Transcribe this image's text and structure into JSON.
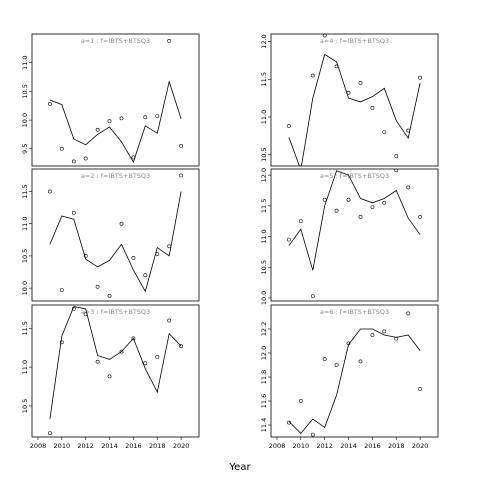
{
  "chart_data": {
    "type": "line",
    "xlabel": "Year",
    "x_ticks": [
      2008,
      2010,
      2012,
      2014,
      2016,
      2018,
      2020
    ],
    "xlim": [
      2007.5,
      2021.5
    ],
    "panels": [
      {
        "title": "a=1 : f=IBTS+BTSQ3",
        "ylim": [
          9.2,
          11.5
        ],
        "y_ticks": [
          9.5,
          10.0,
          10.5,
          11.0
        ],
        "y_tick_labels": [
          "9.5",
          "10.0",
          "10.5",
          "11.0"
        ],
        "x": [
          2009,
          2010,
          2011,
          2012,
          2013,
          2014,
          2015,
          2016,
          2017,
          2018,
          2019,
          2020
        ],
        "fit": [
          10.35,
          10.27,
          9.67,
          9.57,
          9.75,
          9.88,
          9.62,
          9.27,
          9.9,
          9.77,
          10.67,
          10.02
        ],
        "obs": [
          10.28,
          9.5,
          9.28,
          9.33,
          9.83,
          9.98,
          10.03,
          9.35,
          10.05,
          10.07,
          11.38,
          9.55
        ]
      },
      {
        "title": "a=2 : f=IBTS+BTSQ3",
        "ylim": [
          9.8,
          11.85
        ],
        "y_ticks": [
          10.0,
          10.5,
          11.0,
          11.5
        ],
        "y_tick_labels": [
          "10.0",
          "10.5",
          "11.0",
          "11.5"
        ],
        "x": [
          2009,
          2010,
          2011,
          2012,
          2013,
          2014,
          2015,
          2016,
          2017,
          2018,
          2019,
          2020
        ],
        "fit": [
          10.68,
          11.12,
          11.07,
          10.45,
          10.33,
          10.43,
          10.68,
          10.28,
          9.95,
          10.63,
          10.5,
          11.5
        ],
        "obs": [
          11.5,
          9.97,
          11.17,
          10.5,
          10.02,
          9.88,
          11.0,
          10.47,
          10.2,
          10.53,
          10.65,
          11.75
        ]
      },
      {
        "title": "a=3 : f=IBTS+BTSQ3",
        "ylim": [
          10.1,
          11.8
        ],
        "y_ticks": [
          10.5,
          11.0,
          11.5
        ],
        "y_tick_labels": [
          "10.5",
          "11.0",
          "11.5"
        ],
        "x": [
          2009,
          2010,
          2011,
          2012,
          2013,
          2014,
          2015,
          2016,
          2017,
          2018,
          2019,
          2020
        ],
        "fit": [
          10.33,
          11.4,
          11.78,
          11.75,
          11.15,
          11.1,
          11.2,
          11.37,
          10.98,
          10.68,
          11.43,
          11.27
        ],
        "obs": [
          10.15,
          11.32,
          11.75,
          11.68,
          11.07,
          10.88,
          11.2,
          11.37,
          11.05,
          11.13,
          11.6,
          11.27
        ]
      },
      {
        "title": "a=4 : f=IBTS+BTSQ3",
        "ylim": [
          10.35,
          12.1
        ],
        "y_ticks": [
          10.5,
          11.0,
          11.5,
          12.0
        ],
        "y_tick_labels": [
          "10.5",
          "11.0",
          "11.5",
          "12.0"
        ],
        "x": [
          2009,
          2010,
          2011,
          2012,
          2013,
          2014,
          2015,
          2016,
          2017,
          2018,
          2019,
          2020
        ],
        "fit": [
          10.73,
          10.3,
          11.25,
          11.83,
          11.73,
          11.25,
          11.2,
          11.27,
          11.38,
          10.95,
          10.72,
          11.45
        ],
        "obs": [
          10.88,
          10.33,
          11.55,
          12.08,
          11.67,
          11.32,
          11.45,
          11.12,
          10.8,
          10.48,
          10.82,
          11.52
        ]
      },
      {
        "title": "a=5 : f=IBTS+BTSQ3",
        "ylim": [
          9.95,
          12.1
        ],
        "y_ticks": [
          10.0,
          10.5,
          11.0,
          11.5,
          12.0
        ],
        "y_tick_labels": [
          "10.0",
          "10.5",
          "11.0",
          "11.5",
          "12.0"
        ],
        "x": [
          2009,
          2010,
          2011,
          2012,
          2013,
          2014,
          2015,
          2016,
          2017,
          2018,
          2019,
          2020
        ],
        "fit": [
          10.85,
          11.12,
          10.45,
          11.5,
          12.07,
          12.0,
          11.62,
          11.55,
          11.62,
          11.75,
          11.3,
          11.03
        ],
        "obs": [
          10.95,
          11.25,
          10.03,
          11.6,
          11.42,
          11.6,
          11.32,
          11.48,
          11.55,
          12.08,
          11.8,
          11.32
        ]
      },
      {
        "title": "a=6 : f=IBTS+BTSQ3",
        "ylim": [
          11.3,
          12.4
        ],
        "y_ticks": [
          11.4,
          11.6,
          11.8,
          12.0,
          12.2
        ],
        "y_tick_labels": [
          "11.4",
          "11.6",
          "11.8",
          "12.0",
          "12.2"
        ],
        "x": [
          2009,
          2010,
          2011,
          2012,
          2013,
          2014,
          2015,
          2016,
          2017,
          2018,
          2019,
          2020
        ],
        "fit": [
          11.43,
          11.33,
          11.45,
          11.38,
          11.65,
          12.07,
          12.2,
          12.2,
          12.15,
          12.13,
          12.15,
          12.02
        ],
        "obs": [
          11.42,
          11.6,
          11.32,
          11.95,
          11.9,
          12.08,
          11.93,
          12.15,
          12.18,
          12.12,
          12.33,
          11.7
        ]
      }
    ]
  }
}
